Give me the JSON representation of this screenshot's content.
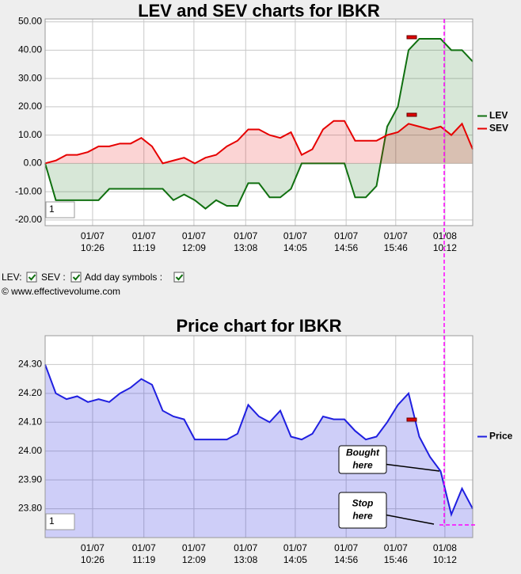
{
  "chart_data": [
    {
      "type": "line",
      "title": "LEV and SEV charts for IBKR",
      "x": [
        0,
        2.5,
        5,
        7.5,
        10,
        12.5,
        15,
        17.5,
        20,
        22.5,
        25,
        27.5,
        30,
        32.5,
        35,
        37.5,
        40,
        42.5,
        45,
        47.5,
        50,
        52.5,
        55,
        57.5,
        60,
        62.5,
        65,
        67.5,
        70,
        72.5,
        75,
        77.5,
        80,
        82.5,
        85,
        87.5,
        90,
        92.5,
        95,
        97.5,
        100
      ],
      "xlim": [
        0,
        100
      ],
      "xticks": [
        {
          "value": 11.1,
          "label": "01/07 10:26"
        },
        {
          "value": 23.1,
          "label": "01/07 11:19"
        },
        {
          "value": 34.8,
          "label": "01/07 12:09"
        },
        {
          "value": 46.9,
          "label": "01/07 13:08"
        },
        {
          "value": 58.5,
          "label": "01/07 14:05"
        },
        {
          "value": 70.4,
          "label": "01/07 14:56"
        },
        {
          "value": 82.0,
          "label": "01/07 15:46"
        },
        {
          "value": 93.5,
          "label": "01/08 10:12"
        }
      ],
      "ylim": [
        -22,
        51
      ],
      "yticks": [
        {
          "value": 50,
          "label": "50.00"
        },
        {
          "value": 40,
          "label": "40.00"
        },
        {
          "value": 30,
          "label": "30.00"
        },
        {
          "value": 20,
          "label": "20.00"
        },
        {
          "value": 10,
          "label": "10.00"
        },
        {
          "value": 0,
          "label": "0.00"
        },
        {
          "value": -10,
          "label": "-10.00"
        },
        {
          "value": -20,
          "label": "-20.00"
        }
      ],
      "grid": true,
      "fill": "zero",
      "legend": "right",
      "input_value": "1",
      "series": [
        {
          "name": "LEV",
          "color": "#107010",
          "values": [
            0,
            -13,
            -13,
            -13,
            -13,
            -13,
            -9,
            -9,
            -9,
            -9,
            -9,
            -9,
            -13,
            -11,
            -13,
            -16,
            -13,
            -15,
            -15,
            -7,
            -7,
            -12,
            -12,
            -9,
            0,
            0,
            0,
            0,
            0,
            -12,
            -12,
            -8,
            13,
            20,
            40,
            44,
            44,
            44,
            40,
            40,
            36
          ]
        },
        {
          "name": "SEV",
          "color": "#e60000",
          "values": [
            0,
            1,
            3,
            3,
            4,
            6,
            6,
            7,
            7,
            9,
            6,
            0,
            1,
            2,
            0,
            2,
            3,
            6,
            8,
            12,
            12,
            10,
            9,
            11,
            3,
            5,
            12,
            15,
            15,
            8,
            8,
            8,
            10,
            11,
            14,
            13,
            12,
            13,
            10,
            14,
            5
          ]
        }
      ]
    },
    {
      "type": "line",
      "title": "Price chart for IBKR",
      "x": [
        0,
        2.5,
        5,
        7.5,
        10,
        12.5,
        15,
        17.5,
        20,
        22.5,
        25,
        27.5,
        30,
        32.5,
        35,
        37.5,
        40,
        42.5,
        45,
        47.5,
        50,
        52.5,
        55,
        57.5,
        60,
        62.5,
        65,
        67.5,
        70,
        72.5,
        75,
        77.5,
        80,
        82.5,
        85,
        87.5,
        90,
        92.5,
        95,
        97.5,
        100
      ],
      "xlim": [
        0,
        100
      ],
      "xticks": [
        {
          "value": 11.1,
          "label": "01/07 10:26"
        },
        {
          "value": 23.1,
          "label": "01/07 11:19"
        },
        {
          "value": 34.8,
          "label": "01/07 12:09"
        },
        {
          "value": 46.9,
          "label": "01/07 13:08"
        },
        {
          "value": 58.5,
          "label": "01/07 14:05"
        },
        {
          "value": 70.4,
          "label": "01/07 14:56"
        },
        {
          "value": 82.0,
          "label": "01/07 15:46"
        },
        {
          "value": 93.5,
          "label": "01/08 10:12"
        }
      ],
      "ylim": [
        23.7,
        24.4
      ],
      "yticks": [
        {
          "value": 24.3,
          "label": "24.30"
        },
        {
          "value": 24.2,
          "label": "24.20"
        },
        {
          "value": 24.1,
          "label": "24.10"
        },
        {
          "value": 24.0,
          "label": "24.00"
        },
        {
          "value": 23.9,
          "label": "23.90"
        },
        {
          "value": 23.8,
          "label": "23.80"
        }
      ],
      "grid": true,
      "fill": "bottom",
      "legend": "right",
      "input_value": "1",
      "annotations": [
        "Bought here",
        "Stop here"
      ],
      "series": [
        {
          "name": "Price",
          "color": "#1f1fe0",
          "values": [
            24.3,
            24.2,
            24.18,
            24.19,
            24.17,
            24.18,
            24.17,
            24.2,
            24.22,
            24.25,
            24.23,
            24.14,
            24.12,
            24.11,
            24.04,
            24.04,
            24.04,
            24.04,
            24.06,
            24.16,
            24.12,
            24.1,
            24.14,
            24.05,
            24.04,
            24.06,
            24.12,
            24.11,
            24.11,
            24.07,
            24.04,
            24.05,
            24.1,
            24.16,
            24.2,
            24.05,
            23.98,
            23.93,
            23.78,
            23.87,
            23.8
          ]
        }
      ]
    }
  ],
  "controls": {
    "lev_label": "LEV:",
    "sev_label": "SEV :",
    "day_symbols_label": "Add day symbols :",
    "copyright": "© www.effectivevolume.com"
  }
}
